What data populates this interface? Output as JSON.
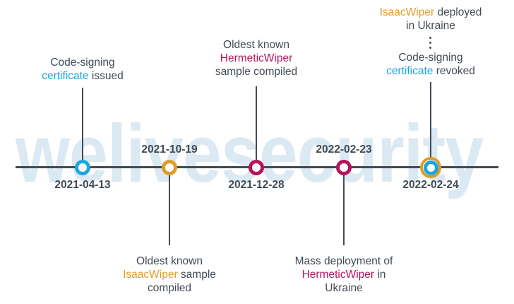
{
  "palette": {
    "dark": "#424B54",
    "blue": "#1BA6DF",
    "orange": "#DE9D28",
    "magenta": "#B5135C",
    "watermark": "#DBE9F3",
    "background": "#FFFFFF"
  },
  "watermark_text": "welivesecurity",
  "timeline": {
    "events": [
      {
        "date": "2021-04-13",
        "marker": "blue",
        "label_position": "above",
        "label_lines": [
          [
            {
              "text": "Code-signing",
              "color": "dark"
            }
          ],
          [
            {
              "text": "certificate",
              "color": "blue"
            },
            {
              "text": " issued",
              "color": "dark"
            }
          ]
        ]
      },
      {
        "date": "2021-10-19",
        "marker": "orange",
        "label_position": "below",
        "label_lines": [
          [
            {
              "text": "Oldest known",
              "color": "dark"
            }
          ],
          [
            {
              "text": "IsaacWiper",
              "color": "orange"
            },
            {
              "text": " sample",
              "color": "dark"
            }
          ],
          [
            {
              "text": "compiled",
              "color": "dark"
            }
          ]
        ]
      },
      {
        "date": "2021-12-28",
        "marker": "magenta",
        "label_position": "above",
        "label_lines": [
          [
            {
              "text": "Oldest known",
              "color": "dark"
            }
          ],
          [
            {
              "text": "HermeticWiper",
              "color": "magenta"
            }
          ],
          [
            {
              "text": "sample compiled",
              "color": "dark"
            }
          ]
        ]
      },
      {
        "date": "2022-02-23",
        "marker": "magenta",
        "label_position": "below",
        "label_lines": [
          [
            {
              "text": "Mass deployment of",
              "color": "dark"
            }
          ],
          [
            {
              "text": "HermeticWiper",
              "color": "magenta"
            },
            {
              "text": " in",
              "color": "dark"
            }
          ],
          [
            {
              "text": "Ukraine",
              "color": "dark"
            }
          ]
        ]
      },
      {
        "date": "2022-02-24",
        "marker": "orange-blue-double-ring",
        "label_position": "above",
        "label_top_lines": [
          [
            {
              "text": "IsaacWiper",
              "color": "orange"
            },
            {
              "text": " deployed",
              "color": "dark"
            }
          ],
          [
            {
              "text": "in Ukraine",
              "color": "dark"
            }
          ]
        ],
        "label_bottom_lines": [
          [
            {
              "text": "Code-signing",
              "color": "dark"
            }
          ],
          [
            {
              "text": "certificate",
              "color": "blue"
            },
            {
              "text": " revoked",
              "color": "dark"
            }
          ]
        ]
      }
    ]
  }
}
